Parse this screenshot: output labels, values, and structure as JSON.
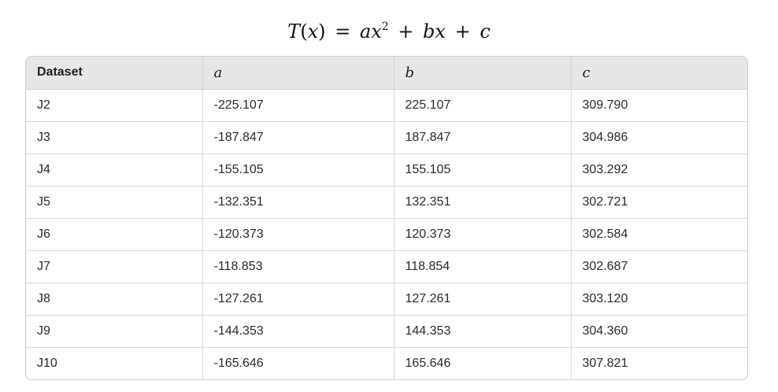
{
  "formula": {
    "lhs_fn": "T",
    "lhs_open": "(",
    "lhs_var": "x",
    "lhs_close": ")",
    "eq": "=",
    "a": "a",
    "x1": "x",
    "exp": "2",
    "plus1": "+",
    "b": "b",
    "x2": "x",
    "plus2": "+",
    "c": "c"
  },
  "table": {
    "headers": [
      "Dataset",
      "a",
      "b",
      "c"
    ],
    "rows": [
      [
        "J2",
        "-225.107",
        "225.107",
        "309.790"
      ],
      [
        "J3",
        "-187.847",
        "187.847",
        "304.986"
      ],
      [
        "J4",
        "-155.105",
        "155.105",
        "303.292"
      ],
      [
        "J5",
        "-132.351",
        "132.351",
        "302.721"
      ],
      [
        "J6",
        "-120.373",
        "120.373",
        "302.584"
      ],
      [
        "J7",
        "-118.853",
        "118.854",
        "302.687"
      ],
      [
        "J8",
        "-127.261",
        "127.261",
        "303.120"
      ],
      [
        "J9",
        "-144.353",
        "144.353",
        "304.360"
      ],
      [
        "J10",
        "-165.646",
        "165.646",
        "307.821"
      ]
    ]
  }
}
